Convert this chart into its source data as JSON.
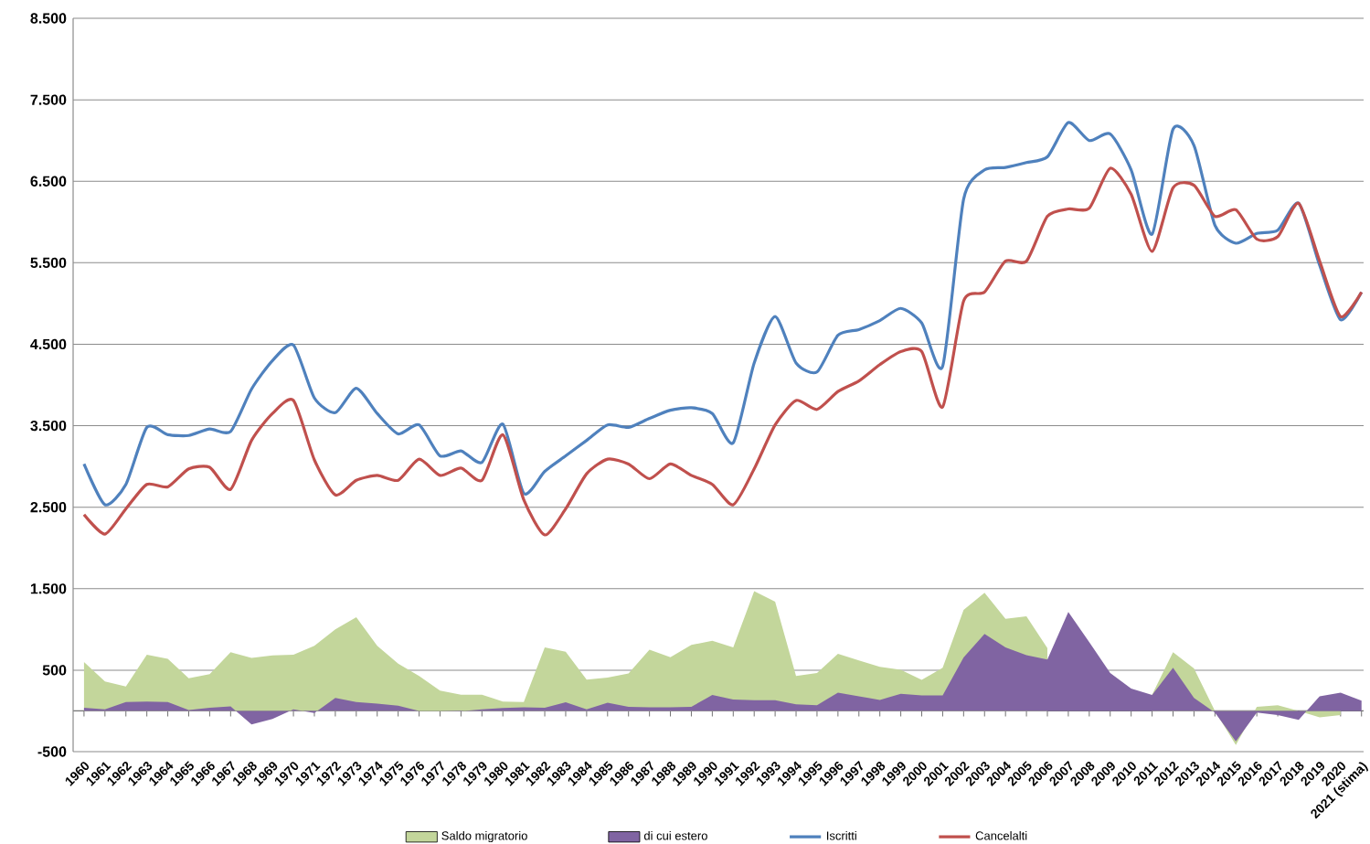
{
  "chart_data": {
    "type": "area",
    "categories": [
      "1960",
      "1961",
      "1962",
      "1963",
      "1964",
      "1965",
      "1966",
      "1967",
      "1968",
      "1969",
      "1970",
      "1971",
      "1972",
      "1973",
      "1974",
      "1975",
      "1976",
      "1977",
      "1978",
      "1979",
      "1980",
      "1981",
      "1982",
      "1983",
      "1984",
      "1985",
      "1986",
      "1987",
      "1988",
      "1989",
      "1990",
      "1991",
      "1992",
      "1993",
      "1994",
      "1995",
      "1996",
      "1997",
      "1998",
      "1999",
      "2000",
      "2001",
      "2002",
      "2003",
      "2004",
      "2005",
      "2006",
      "2007",
      "2008",
      "2009",
      "2010",
      "2011",
      "2012",
      "2013",
      "2014",
      "2015",
      "2016",
      "2017",
      "2018",
      "2019",
      "2020",
      "2021 (stima)"
    ],
    "series": [
      {
        "name": "Saldo migratorio",
        "type": "area",
        "color": "#c3d69b",
        "values": [
          600,
          360,
          300,
          690,
          640,
          400,
          450,
          720,
          650,
          680,
          690,
          800,
          1000,
          1150,
          800,
          580,
          430,
          250,
          200,
          200,
          115,
          110,
          780,
          725,
          385,
          410,
          460,
          750,
          660,
          810,
          860,
          780,
          1470,
          1340,
          430,
          465,
          700,
          620,
          540,
          505,
          380,
          530,
          1240,
          1450,
          1130,
          1160,
          770,
          null,
          null,
          null,
          null,
          200,
          720,
          520,
          0,
          -420,
          50,
          70,
          0,
          -80,
          -50,
          null
        ]
      },
      {
        "name": "di cui estero",
        "type": "area",
        "color": "#8064a2",
        "values": [
          40,
          20,
          110,
          115,
          110,
          10,
          40,
          55,
          -165,
          -100,
          20,
          -25,
          160,
          110,
          90,
          65,
          0,
          0,
          -5,
          20,
          35,
          45,
          40,
          105,
          20,
          100,
          50,
          45,
          45,
          50,
          195,
          140,
          130,
          130,
          80,
          70,
          225,
          180,
          135,
          210,
          190,
          190,
          655,
          945,
          780,
          685,
          630,
          1215,
          845,
          465,
          275,
          195,
          530,
          160,
          -20,
          -375,
          -20,
          -50,
          -110,
          180,
          225,
          125
        ]
      },
      {
        "name": "Iscritti",
        "type": "line",
        "color": "#4f81bd",
        "values": [
          3030,
          2530,
          2780,
          3480,
          3390,
          3380,
          3460,
          3430,
          3950,
          4300,
          4490,
          3840,
          3660,
          3960,
          3650,
          3400,
          3510,
          3130,
          3190,
          3050,
          3520,
          2670,
          2940,
          3130,
          3320,
          3510,
          3480,
          3590,
          3690,
          3720,
          3650,
          3290,
          4270,
          4840,
          4270,
          4160,
          4610,
          4680,
          4790,
          4940,
          4760,
          4230,
          6280,
          6640,
          6670,
          6730,
          6800,
          7220,
          7000,
          7080,
          6640,
          5850,
          7140,
          6940,
          5960,
          5740,
          5860,
          5900,
          6230,
          5470,
          4800,
          5140
        ]
      },
      {
        "name": "Cancelalti",
        "type": "line",
        "color": "#c0504d",
        "values": [
          2410,
          2170,
          2480,
          2780,
          2750,
          2970,
          2990,
          2720,
          3320,
          3650,
          3810,
          3080,
          2650,
          2830,
          2890,
          2830,
          3090,
          2890,
          2980,
          2830,
          3390,
          2590,
          2160,
          2480,
          2910,
          3090,
          3030,
          2850,
          3030,
          2890,
          2780,
          2530,
          2970,
          3510,
          3810,
          3700,
          3920,
          4050,
          4250,
          4410,
          4410,
          3730,
          5030,
          5140,
          5520,
          5520,
          6070,
          6160,
          6170,
          6660,
          6340,
          5640,
          6420,
          6450,
          6070,
          6150,
          5790,
          5820,
          6230,
          5520,
          4840,
          5140
        ]
      }
    ],
    "ylim": [
      -500,
      8500
    ],
    "yticks": [
      {
        "value": -500,
        "label": "-500"
      },
      {
        "value": 500,
        "label": "500"
      },
      {
        "value": 1500,
        "label": "1.500"
      },
      {
        "value": 2500,
        "label": "2.500"
      },
      {
        "value": 3500,
        "label": "3.500"
      },
      {
        "value": 4500,
        "label": "4.500"
      },
      {
        "value": 5500,
        "label": "5.500"
      },
      {
        "value": 6500,
        "label": "6.500"
      },
      {
        "value": 7500,
        "label": "7.500"
      },
      {
        "value": 8500,
        "label": "8.500"
      }
    ],
    "grid": "y",
    "legend": "bottom",
    "marker": "none",
    "line_style": "solid"
  }
}
